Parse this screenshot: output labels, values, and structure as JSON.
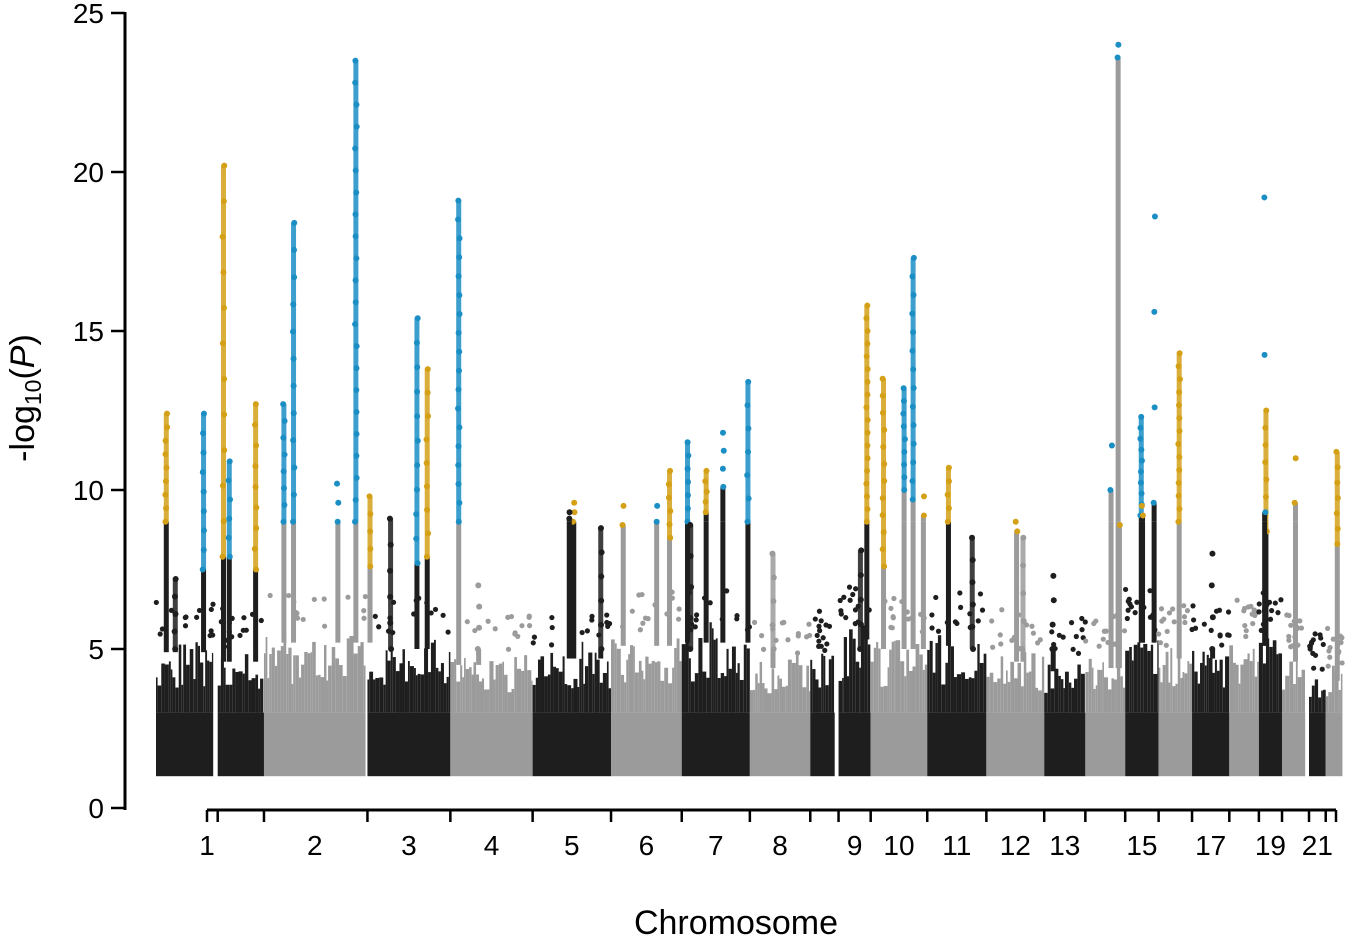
{
  "chart_data": {
    "type": "scatter",
    "subtype": "manhattan",
    "title": "",
    "xlabel": "Chromosome",
    "ylabel_prefix": "-log",
    "ylabel_subscript": "10",
    "ylabel_paren_open": "(",
    "ylabel_italic": "P",
    "ylabel_paren_close": ")",
    "ylim": [
      0,
      25
    ],
    "yticks": [
      0,
      5,
      10,
      15,
      20,
      25
    ],
    "colors": {
      "odd_chromosome": "#1e1e1e",
      "even_chromosome": "#9b9b9b",
      "significant_blue": "#1b8ec4",
      "significant_gold": "#d4a017"
    },
    "chromosomes": [
      {
        "label": "1",
        "show_label": true,
        "shade": "dark",
        "x_start": 0.0,
        "x_end": 8.9,
        "base_top": 5.2,
        "peaks": [
          {
            "x": 1.6,
            "y_min": 9.0,
            "y_max": 12.4,
            "color": "gold",
            "n": 9
          },
          {
            "x": 7.4,
            "y_min": 7.5,
            "y_max": 12.4,
            "color": "blue",
            "n": 9
          },
          {
            "x": 3.0,
            "y_min": 5.0,
            "y_max": 7.2,
            "color": "dark",
            "n": 5
          }
        ]
      },
      {
        "label": "",
        "show_label": false,
        "shade": "dark",
        "x_start": 9.6,
        "x_end": 16.8,
        "base_top": 4.9,
        "peaks": [
          {
            "x": 10.5,
            "y_min": 7.9,
            "y_max": 20.2,
            "color": "gold",
            "n": 12
          },
          {
            "x": 11.4,
            "y_min": 7.9,
            "y_max": 10.9,
            "color": "blue",
            "n": 6
          },
          {
            "x": 15.5,
            "y_min": 7.5,
            "y_max": 12.7,
            "color": "gold",
            "n": 9
          }
        ]
      },
      {
        "label": "2",
        "show_label": true,
        "shade": "light",
        "x_start": 16.8,
        "x_end": 32.6,
        "base_top": 5.5,
        "peaks": [
          {
            "x": 19.9,
            "y_min": 9.0,
            "y_max": 12.7,
            "color": "blue",
            "n": 8
          },
          {
            "x": 21.4,
            "y_min": 9.0,
            "y_max": 18.4,
            "color": "blue",
            "n": 12
          },
          {
            "x": 28.3,
            "y_min": 9.0,
            "y_max": 10.2,
            "color": "blue",
            "n": 3
          },
          {
            "x": 31.1,
            "y_min": 9.0,
            "y_max": 23.5,
            "color": "blue",
            "n": 22
          },
          {
            "x": 33.3,
            "y_min": 7.6,
            "y_max": 9.8,
            "color": "gold",
            "n": 5
          }
        ]
      },
      {
        "label": "3",
        "show_label": true,
        "shade": "dark",
        "x_start": 32.9,
        "x_end": 45.8,
        "base_top": 5.3,
        "peaks": [
          {
            "x": 40.6,
            "y_min": 7.7,
            "y_max": 15.4,
            "color": "blue",
            "n": 11
          },
          {
            "x": 42.2,
            "y_min": 7.9,
            "y_max": 13.8,
            "color": "gold",
            "n": 9
          },
          {
            "x": 36.5,
            "y_min": 5.0,
            "y_max": 9.1,
            "color": "dark",
            "n": 6
          }
        ]
      },
      {
        "label": "4",
        "show_label": true,
        "shade": "light",
        "x_start": 45.8,
        "x_end": 58.6,
        "base_top": 4.8,
        "peaks": [
          {
            "x": 47.1,
            "y_min": 9.0,
            "y_max": 19.1,
            "color": "blue",
            "n": 18
          },
          {
            "x": 50.2,
            "y_min": 5.0,
            "y_max": 7.0,
            "color": "light",
            "n": 4
          }
        ]
      },
      {
        "label": "5",
        "show_label": true,
        "shade": "dark",
        "x_start": 58.6,
        "x_end": 70.8,
        "base_top": 5.0,
        "peaks": [
          {
            "x": 65.0,
            "y_min": 9.0,
            "y_max": 9.6,
            "color": "gold",
            "n": 3
          },
          {
            "x": 64.3,
            "y_min": 9.1,
            "y_max": 9.3,
            "color": "dark",
            "n": 2
          },
          {
            "x": 69.2,
            "y_min": 5.0,
            "y_max": 8.8,
            "color": "dark",
            "n": 6
          }
        ]
      },
      {
        "label": "6",
        "show_label": true,
        "shade": "light",
        "x_start": 70.8,
        "x_end": 81.8,
        "base_top": 5.4,
        "peaks": [
          {
            "x": 72.7,
            "y_min": 8.9,
            "y_max": 9.5,
            "color": "gold",
            "n": 2
          },
          {
            "x": 77.9,
            "y_min": 9.0,
            "y_max": 9.5,
            "color": "blue",
            "n": 2
          },
          {
            "x": 79.9,
            "y_min": 8.5,
            "y_max": 10.6,
            "color": "gold",
            "n": 6
          }
        ]
      },
      {
        "label": "7",
        "show_label": true,
        "shade": "dark",
        "x_start": 81.8,
        "x_end": 92.4,
        "base_top": 5.5,
        "peaks": [
          {
            "x": 82.7,
            "y_min": 9.0,
            "y_max": 11.5,
            "color": "blue",
            "n": 7
          },
          {
            "x": 85.6,
            "y_min": 9.3,
            "y_max": 10.6,
            "color": "gold",
            "n": 5
          },
          {
            "x": 88.2,
            "y_min": 10.1,
            "y_max": 11.8,
            "color": "blue",
            "n": 4
          },
          {
            "x": 92.1,
            "y_min": 9.0,
            "y_max": 13.4,
            "color": "blue",
            "n": 7
          },
          {
            "x": 83.2,
            "y_min": 5.0,
            "y_max": 8.9,
            "color": "dark",
            "n": 5
          }
        ]
      },
      {
        "label": "8",
        "show_label": true,
        "shade": "light",
        "x_start": 92.4,
        "x_end": 101.8,
        "base_top": 4.7,
        "peaks": [
          {
            "x": 96.0,
            "y_min": 5.0,
            "y_max": 8.0,
            "color": "light",
            "n": 5
          }
        ]
      },
      {
        "label": "",
        "show_label": false,
        "shade": "dark",
        "x_start": 101.8,
        "x_end": 105.6,
        "base_top": 4.8,
        "peaks": []
      },
      {
        "label": "9",
        "show_label": true,
        "shade": "dark",
        "x_start": 106.2,
        "x_end": 111.2,
        "base_top": 5.6,
        "peaks": [
          {
            "x": 110.6,
            "y_min": 9.0,
            "y_max": 15.8,
            "color": "gold",
            "n": 18
          },
          {
            "x": 109.6,
            "y_min": 5.0,
            "y_max": 8.1,
            "color": "dark",
            "n": 5
          }
        ]
      },
      {
        "label": "10",
        "show_label": true,
        "shade": "light",
        "x_start": 111.2,
        "x_end": 120.0,
        "base_top": 5.3,
        "peaks": [
          {
            "x": 113.2,
            "y_min": 7.6,
            "y_max": 13.5,
            "color": "gold",
            "n": 12
          },
          {
            "x": 116.4,
            "y_min": 10.0,
            "y_max": 13.2,
            "color": "blue",
            "n": 9
          },
          {
            "x": 117.8,
            "y_min": 9.7,
            "y_max": 17.3,
            "color": "blue",
            "n": 14
          },
          {
            "x": 119.4,
            "y_min": 9.2,
            "y_max": 9.8,
            "color": "gold",
            "n": 2
          }
        ]
      },
      {
        "label": "11",
        "show_label": true,
        "shade": "dark",
        "x_start": 120.0,
        "x_end": 129.2,
        "base_top": 5.4,
        "peaks": [
          {
            "x": 123.3,
            "y_min": 9.0,
            "y_max": 10.7,
            "color": "gold",
            "n": 5
          },
          {
            "x": 127.0,
            "y_min": 5.0,
            "y_max": 8.5,
            "color": "dark",
            "n": 6
          }
        ]
      },
      {
        "label": "12",
        "show_label": true,
        "shade": "light",
        "x_start": 129.2,
        "x_end": 138.2,
        "base_top": 4.9,
        "peaks": [
          {
            "x": 133.9,
            "y_min": 8.7,
            "y_max": 9.0,
            "color": "gold",
            "n": 2
          },
          {
            "x": 134.9,
            "y_min": 5.0,
            "y_max": 8.5,
            "color": "light",
            "n": 5
          }
        ]
      },
      {
        "label": "13",
        "show_label": true,
        "shade": "dark",
        "x_start": 138.2,
        "x_end": 144.6,
        "base_top": 4.6,
        "peaks": [
          {
            "x": 139.6,
            "y_min": 5.0,
            "y_max": 7.3,
            "color": "dark",
            "n": 4
          }
        ]
      },
      {
        "label": "",
        "show_label": false,
        "shade": "light",
        "x_start": 144.6,
        "x_end": 150.8,
        "base_top": 4.7,
        "peaks": [
          {
            "x": 148.6,
            "y_min": 10.0,
            "y_max": 11.4,
            "color": "blue",
            "n": 2
          },
          {
            "x": 149.7,
            "y_min": 23.6,
            "y_max": 24.0,
            "color": "blue",
            "n": 2
          },
          {
            "x": 149.9,
            "y_min": 8.9,
            "y_max": 8.9,
            "color": "gold",
            "n": 1
          }
        ]
      },
      {
        "label": "15",
        "show_label": true,
        "shade": "dark",
        "x_start": 150.8,
        "x_end": 156.0,
        "base_top": 5.5,
        "peaks": [
          {
            "x": 153.3,
            "y_min": 9.2,
            "y_max": 12.3,
            "color": "blue",
            "n": 10
          },
          {
            "x": 153.5,
            "y_min": 9.2,
            "y_max": 9.5,
            "color": "gold",
            "n": 2
          },
          {
            "x": 155.3,
            "y_min": 9.6,
            "y_max": 18.6,
            "color": "blue",
            "n": 4
          }
        ]
      },
      {
        "label": "",
        "show_label": false,
        "shade": "light",
        "x_start": 156.0,
        "x_end": 161.2,
        "base_top": 5.0,
        "peaks": [
          {
            "x": 159.2,
            "y_min": 9.0,
            "y_max": 14.3,
            "color": "gold",
            "n": 14
          }
        ]
      },
      {
        "label": "17",
        "show_label": true,
        "shade": "dark",
        "x_start": 161.2,
        "x_end": 167.0,
        "base_top": 5.0,
        "peaks": [
          {
            "x": 164.4,
            "y_min": 5.0,
            "y_max": 8.0,
            "color": "dark",
            "n": 4
          }
        ]
      },
      {
        "label": "",
        "show_label": false,
        "shade": "light",
        "x_start": 167.0,
        "x_end": 171.6,
        "base_top": 5.2,
        "peaks": []
      },
      {
        "label": "19",
        "show_label": true,
        "shade": "dark",
        "x_start": 171.6,
        "x_end": 175.2,
        "base_top": 5.4,
        "peaks": [
          {
            "x": 172.7,
            "y_min": 8.7,
            "y_max": 12.5,
            "color": "gold",
            "n": 8
          },
          {
            "x": 172.5,
            "y_min": 9.3,
            "y_max": 19.2,
            "color": "blue",
            "n": 3
          }
        ]
      },
      {
        "label": "",
        "show_label": false,
        "shade": "light",
        "x_start": 175.2,
        "x_end": 178.8,
        "base_top": 4.9,
        "peaks": [
          {
            "x": 177.3,
            "y_min": 9.6,
            "y_max": 11.0,
            "color": "gold",
            "n": 2
          }
        ]
      },
      {
        "label": "21",
        "show_label": true,
        "shade": "dark",
        "x_start": 179.4,
        "x_end": 182.0,
        "base_top": 4.2,
        "peaks": []
      },
      {
        "label": "",
        "show_label": false,
        "shade": "light",
        "x_start": 182.0,
        "x_end": 184.6,
        "base_top": 4.3,
        "peaks": [
          {
            "x": 183.8,
            "y_min": 8.3,
            "y_max": 11.2,
            "color": "gold",
            "n": 7
          }
        ]
      }
    ]
  }
}
